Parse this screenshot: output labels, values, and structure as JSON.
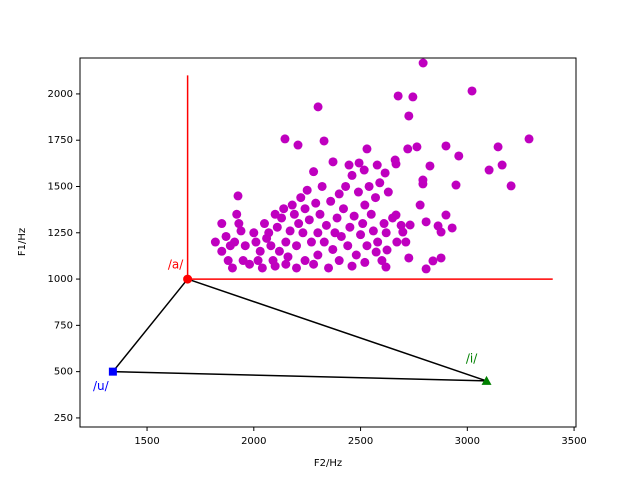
{
  "chart_data": {
    "type": "scatter",
    "xlabel": "F2/Hz",
    "ylabel": "F1/Hz",
    "xlim": [
      1186,
      3509
    ],
    "ylim": [
      201,
      2194
    ],
    "xticks": [
      1500,
      2000,
      2500,
      3000,
      3500
    ],
    "yticks": [
      250,
      500,
      750,
      1000,
      1250,
      1500,
      1750,
      2000
    ],
    "series": [
      {
        "color": "#bf00bf",
        "x": [
          2793,
          3022,
          2301,
          2676,
          2745,
          2726,
          3289,
          3144,
          2146,
          2207,
          2329,
          2900,
          2960,
          3163,
          2764,
          2721,
          3102,
          3205,
          2947,
          1926,
          2825,
          2792,
          2792,
          2662,
          2666,
          2530,
          2446,
          2371,
          2493,
          2517,
          2578,
          2615,
          2779,
          2900,
          2929,
          2863,
          2807,
          2877,
          2732,
          2666,
          2698,
          2712,
          2726,
          2877,
          2807,
          2839,
          2619,
          2573,
          2624,
          1820,
          1850,
          1850,
          1870,
          1880,
          1890,
          1900,
          1910,
          1920,
          1930,
          1940,
          1950,
          1960,
          1980,
          2000,
          2010,
          2020,
          2030,
          2040,
          2050,
          2060,
          2070,
          2080,
          2090,
          2100,
          2100,
          2110,
          2120,
          2130,
          2140,
          2150,
          2150,
          2160,
          2170,
          2180,
          2190,
          2200,
          2200,
          2210,
          2220,
          2230,
          2240,
          2240,
          2250,
          2260,
          2270,
          2280,
          2280,
          2290,
          2300,
          2300,
          2310,
          2320,
          2330,
          2340,
          2350,
          2360,
          2370,
          2380,
          2390,
          2400,
          2400,
          2410,
          2420,
          2430,
          2440,
          2450,
          2460,
          2460,
          2470,
          2480,
          2490,
          2500,
          2510,
          2520,
          2520,
          2530,
          2540,
          2550,
          2560,
          2570,
          2580,
          2590,
          2600,
          2610,
          2620,
          2630,
          2650,
          2670,
          2690
        ],
        "y": [
          2167,
          2016,
          1930,
          1989,
          1984,
          1881,
          1757,
          1714,
          1757,
          1724,
          1746,
          1719,
          1665,
          1616,
          1714,
          1703,
          1589,
          1503,
          1508,
          1449,
          1611,
          1514,
          1535,
          1643,
          1622,
          1703,
          1616,
          1633,
          1627,
          1589,
          1616,
          1573,
          1400,
          1346,
          1276,
          1287,
          1309,
          1254,
          1292,
          1346,
          1254,
          1200,
          1114,
          1114,
          1055,
          1098,
          1065,
          1146,
          1157,
          1200,
          1300,
          1150,
          1230,
          1100,
          1180,
          1060,
          1200,
          1350,
          1300,
          1260,
          1100,
          1180,
          1080,
          1250,
          1200,
          1100,
          1150,
          1060,
          1300,
          1220,
          1250,
          1180,
          1100,
          1350,
          1070,
          1280,
          1150,
          1330,
          1380,
          1200,
          1080,
          1120,
          1260,
          1400,
          1350,
          1060,
          1180,
          1300,
          1440,
          1250,
          1100,
          1380,
          1480,
          1320,
          1200,
          1580,
          1080,
          1410,
          1250,
          1130,
          1350,
          1500,
          1200,
          1290,
          1060,
          1420,
          1160,
          1250,
          1330,
          1460,
          1100,
          1230,
          1380,
          1500,
          1180,
          1280,
          1560,
          1070,
          1340,
          1130,
          1470,
          1240,
          1300,
          1400,
          1090,
          1180,
          1500,
          1350,
          1260,
          1440,
          1200,
          1520,
          1100,
          1300,
          1250,
          1470,
          1330,
          1200,
          1290
        ]
      }
    ],
    "reference_lines": [
      {
        "color": "red",
        "x": [
          1690,
          1690
        ],
        "y": [
          1000,
          2100
        ]
      },
      {
        "color": "red",
        "x": [
          1690,
          3400
        ],
        "y": [
          1000,
          1000
        ]
      }
    ],
    "vowels": [
      {
        "label": "/a/",
        "x": 1690,
        "y": 1000,
        "color": "red",
        "marker": "circle"
      },
      {
        "label": "/u/",
        "x": 1340,
        "y": 500,
        "color": "blue",
        "marker": "square"
      },
      {
        "label": "/i/",
        "x": 3090,
        "y": 450,
        "color": "green",
        "marker": "triangle"
      }
    ],
    "triangle_color": "black"
  }
}
